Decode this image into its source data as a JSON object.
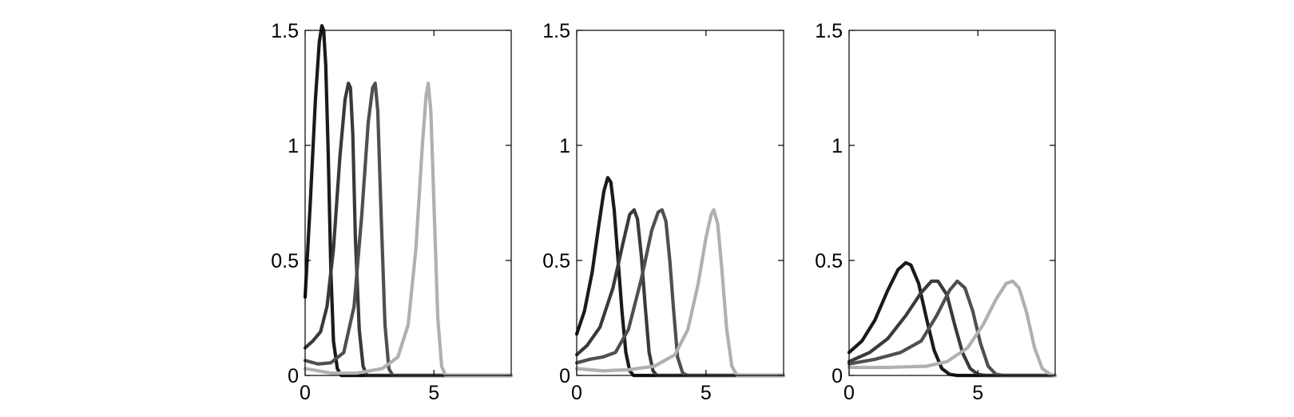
{
  "chart_data": [
    {
      "type": "line",
      "title": "",
      "xlabel": "",
      "ylabel": "",
      "xlim": [
        0,
        8
      ],
      "ylim": [
        0,
        1.5
      ],
      "xticks": [
        {
          "value": 0,
          "label": "0"
        },
        {
          "value": 5,
          "label": "5"
        }
      ],
      "yticks": [
        {
          "value": 0,
          "label": "0"
        },
        {
          "value": 0.5,
          "label": "0.5"
        },
        {
          "value": 1,
          "label": "1"
        },
        {
          "value": 1.5,
          "label": "1.5"
        }
      ],
      "grid": false,
      "series": [
        {
          "color": "#1a1a1a",
          "x": [
            0,
            0.2,
            0.4,
            0.55,
            0.65,
            0.72,
            0.8,
            0.9,
            1.0,
            1.1,
            1.25,
            1.4,
            8
          ],
          "y": [
            0.34,
            0.75,
            1.2,
            1.45,
            1.52,
            1.5,
            1.35,
            0.95,
            0.45,
            0.15,
            0.03,
            0.0,
            0.0
          ]
        },
        {
          "color": "#3a3a3a",
          "x": [
            0,
            0.3,
            0.6,
            0.85,
            1.1,
            1.35,
            1.55,
            1.68,
            1.76,
            1.85,
            1.95,
            2.1,
            2.25,
            2.4,
            8
          ],
          "y": [
            0.12,
            0.15,
            0.19,
            0.3,
            0.55,
            0.95,
            1.2,
            1.27,
            1.25,
            1.05,
            0.6,
            0.2,
            0.04,
            0.0,
            0.0
          ]
        },
        {
          "color": "#4f4f4f",
          "x": [
            0,
            0.5,
            1.0,
            1.5,
            1.9,
            2.2,
            2.45,
            2.62,
            2.72,
            2.82,
            2.95,
            3.1,
            3.25,
            3.4,
            8
          ],
          "y": [
            0.065,
            0.05,
            0.055,
            0.1,
            0.3,
            0.7,
            1.1,
            1.25,
            1.27,
            1.15,
            0.7,
            0.22,
            0.03,
            0.0,
            0.0
          ]
        },
        {
          "color": "#b0b0b0",
          "x": [
            0,
            0.5,
            1.0,
            2.0,
            3.0,
            3.6,
            4.0,
            4.3,
            4.55,
            4.7,
            4.78,
            4.88,
            5.0,
            5.15,
            5.3,
            5.45,
            8
          ],
          "y": [
            0.03,
            0.02,
            0.01,
            0.01,
            0.03,
            0.08,
            0.22,
            0.55,
            1.0,
            1.22,
            1.27,
            1.15,
            0.75,
            0.25,
            0.04,
            0.0,
            0.0
          ]
        }
      ]
    },
    {
      "type": "line",
      "title": "",
      "xlabel": "",
      "ylabel": "",
      "xlim": [
        0,
        8
      ],
      "ylim": [
        0,
        1.5
      ],
      "xticks": [
        {
          "value": 0,
          "label": "0"
        },
        {
          "value": 5,
          "label": "5"
        }
      ],
      "yticks": [
        {
          "value": 0,
          "label": "0"
        },
        {
          "value": 0.5,
          "label": "0.5"
        },
        {
          "value": 1,
          "label": "1"
        },
        {
          "value": 1.5,
          "label": "1.5"
        }
      ],
      "grid": false,
      "series": [
        {
          "color": "#1a1a1a",
          "x": [
            0,
            0.3,
            0.6,
            0.85,
            1.05,
            1.2,
            1.32,
            1.45,
            1.6,
            1.75,
            1.9,
            2.05,
            2.2,
            2.4,
            8
          ],
          "y": [
            0.18,
            0.28,
            0.45,
            0.65,
            0.8,
            0.86,
            0.84,
            0.72,
            0.5,
            0.28,
            0.1,
            0.02,
            0.0,
            0.0,
            0.0
          ]
        },
        {
          "color": "#3a3a3a",
          "x": [
            0,
            0.4,
            0.9,
            1.4,
            1.8,
            2.05,
            2.22,
            2.35,
            2.5,
            2.65,
            2.8,
            2.95,
            3.1,
            3.3,
            8
          ],
          "y": [
            0.09,
            0.13,
            0.21,
            0.38,
            0.58,
            0.7,
            0.72,
            0.68,
            0.52,
            0.3,
            0.1,
            0.02,
            0.0,
            0.0,
            0.0
          ]
        },
        {
          "color": "#4f4f4f",
          "x": [
            0,
            0.5,
            1.0,
            1.5,
            2.0,
            2.5,
            2.9,
            3.15,
            3.3,
            3.45,
            3.6,
            3.75,
            3.9,
            4.1,
            4.3,
            8
          ],
          "y": [
            0.055,
            0.07,
            0.08,
            0.1,
            0.2,
            0.42,
            0.63,
            0.71,
            0.72,
            0.67,
            0.5,
            0.28,
            0.08,
            0.01,
            0.0,
            0.0
          ]
        },
        {
          "color": "#b0b0b0",
          "x": [
            0,
            1.0,
            2.0,
            3.0,
            3.8,
            4.3,
            4.7,
            5.0,
            5.2,
            5.3,
            5.45,
            5.6,
            5.8,
            6.0,
            6.2,
            8
          ],
          "y": [
            0.03,
            0.02,
            0.025,
            0.04,
            0.09,
            0.2,
            0.4,
            0.6,
            0.7,
            0.72,
            0.66,
            0.48,
            0.2,
            0.04,
            0.0,
            0.0
          ]
        }
      ]
    },
    {
      "type": "line",
      "title": "",
      "xlabel": "",
      "ylabel": "",
      "xlim": [
        0,
        8
      ],
      "ylim": [
        0,
        1.5
      ],
      "xticks": [
        {
          "value": 0,
          "label": "0"
        },
        {
          "value": 5,
          "label": "5"
        }
      ],
      "yticks": [
        {
          "value": 0,
          "label": "0"
        },
        {
          "value": 0.5,
          "label": "0.5"
        },
        {
          "value": 1,
          "label": "1"
        },
        {
          "value": 1.5,
          "label": "1.5"
        }
      ],
      "grid": false,
      "series": [
        {
          "color": "#1a1a1a",
          "x": [
            0,
            0.5,
            1.0,
            1.5,
            1.9,
            2.2,
            2.4,
            2.7,
            3.0,
            3.3,
            3.6,
            3.9,
            4.2,
            8
          ],
          "y": [
            0.1,
            0.15,
            0.24,
            0.37,
            0.46,
            0.49,
            0.48,
            0.4,
            0.25,
            0.11,
            0.03,
            0.005,
            0.0,
            0.0
          ]
        },
        {
          "color": "#3a3a3a",
          "x": [
            0,
            0.8,
            1.5,
            2.2,
            2.8,
            3.2,
            3.45,
            3.8,
            4.1,
            4.4,
            4.7,
            5.0,
            5.3,
            8
          ],
          "y": [
            0.06,
            0.1,
            0.16,
            0.26,
            0.36,
            0.41,
            0.41,
            0.35,
            0.22,
            0.1,
            0.03,
            0.005,
            0.0,
            0.0
          ]
        },
        {
          "color": "#4f4f4f",
          "x": [
            0,
            1.0,
            2.0,
            2.8,
            3.4,
            3.9,
            4.2,
            4.5,
            4.8,
            5.1,
            5.4,
            5.7,
            6.0,
            8
          ],
          "y": [
            0.05,
            0.07,
            0.1,
            0.15,
            0.26,
            0.37,
            0.41,
            0.38,
            0.28,
            0.14,
            0.04,
            0.005,
            0.0,
            0.0
          ]
        },
        {
          "color": "#b0b0b0",
          "x": [
            0,
            1.5,
            3.0,
            3.8,
            4.6,
            5.2,
            5.7,
            6.1,
            6.35,
            6.6,
            6.9,
            7.2,
            7.5,
            7.8,
            8
          ],
          "y": [
            0.035,
            0.035,
            0.04,
            0.06,
            0.12,
            0.22,
            0.33,
            0.4,
            0.41,
            0.38,
            0.27,
            0.12,
            0.03,
            0.005,
            0.0
          ]
        }
      ]
    }
  ]
}
